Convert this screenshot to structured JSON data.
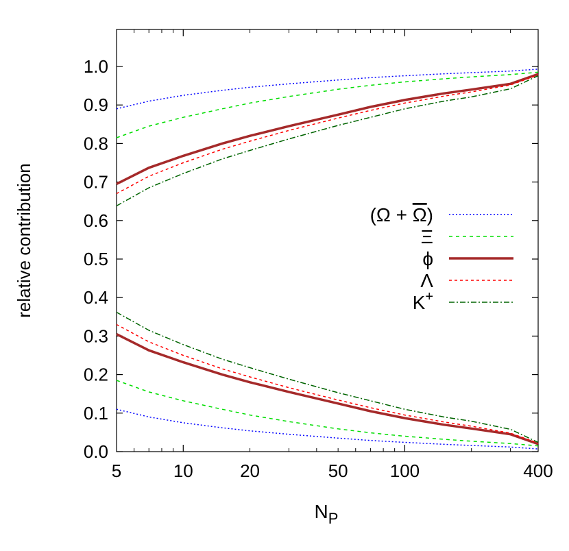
{
  "chart_data": {
    "type": "line",
    "xlabel": "N",
    "xlabel_sub": "P",
    "ylabel": "relative contribution",
    "xscale": "log",
    "xlim": [
      5,
      400
    ],
    "ylim": [
      0,
      1.0
    ],
    "x_ticks": [
      5,
      10,
      20,
      50,
      100,
      400
    ],
    "x_tick_labels": [
      "5",
      "10",
      "20",
      "50",
      "100",
      "400"
    ],
    "y_ticks": [
      0,
      0.1,
      0.2,
      0.3,
      0.4,
      0.5,
      0.6,
      0.7,
      0.8,
      0.9,
      1.0
    ],
    "y_tick_labels": [
      "0.0",
      "0.1",
      "0.2",
      "0.3",
      "0.4",
      "0.5",
      "0.6",
      "0.7",
      "0.8",
      "0.9",
      "1.0"
    ],
    "grid": false,
    "legend_position": "right",
    "x": [
      5,
      7,
      10,
      15,
      20,
      30,
      50,
      70,
      100,
      150,
      200,
      300,
      400
    ],
    "series": [
      {
        "name": "(Ω + Ω̄)",
        "label_main": "(Ω + ",
        "label_over": "Ω",
        "label_close": ")",
        "color": "#0000ff",
        "dash": "2,3",
        "width": 1.5,
        "upper": [
          0.89,
          0.91,
          0.925,
          0.938,
          0.946,
          0.955,
          0.965,
          0.971,
          0.976,
          0.981,
          0.984,
          0.988,
          0.993
        ],
        "lower": [
          0.11,
          0.09,
          0.075,
          0.062,
          0.054,
          0.045,
          0.035,
          0.029,
          0.024,
          0.019,
          0.016,
          0.012,
          0.007
        ]
      },
      {
        "name": "Ξ",
        "label_main": "Ξ",
        "label_over": "",
        "label_close": "",
        "color": "#00dd00",
        "dash": "5,5",
        "width": 1.5,
        "upper": [
          0.815,
          0.845,
          0.868,
          0.89,
          0.905,
          0.922,
          0.941,
          0.951,
          0.96,
          0.968,
          0.973,
          0.979,
          0.985
        ],
        "lower": [
          0.185,
          0.155,
          0.132,
          0.11,
          0.095,
          0.078,
          0.059,
          0.049,
          0.04,
          0.032,
          0.027,
          0.021,
          0.015
        ]
      },
      {
        "name": "ϕ",
        "label_main": "ϕ",
        "label_over": "",
        "label_close": "",
        "color": "#a52a2a",
        "dash": "",
        "width": 3.5,
        "upper": [
          0.695,
          0.737,
          0.768,
          0.8,
          0.82,
          0.845,
          0.875,
          0.895,
          0.913,
          0.93,
          0.94,
          0.955,
          0.98
        ],
        "lower": [
          0.305,
          0.263,
          0.232,
          0.2,
          0.18,
          0.155,
          0.125,
          0.105,
          0.087,
          0.07,
          0.06,
          0.045,
          0.02
        ]
      },
      {
        "name": "Λ",
        "label_main": "Λ",
        "label_over": "",
        "label_close": "",
        "color": "#ff0000",
        "dash": "4,4",
        "width": 1.5,
        "upper": [
          0.67,
          0.715,
          0.75,
          0.785,
          0.806,
          0.834,
          0.866,
          0.886,
          0.905,
          0.923,
          0.934,
          0.952,
          0.978
        ],
        "lower": [
          0.33,
          0.285,
          0.25,
          0.215,
          0.194,
          0.166,
          0.134,
          0.114,
          0.095,
          0.077,
          0.066,
          0.048,
          0.022
        ]
      },
      {
        "name": "K⁺",
        "label_main": "K",
        "label_sup": "+",
        "label_over": "",
        "label_close": "",
        "color": "#006400",
        "dash": "8,3,2,3",
        "width": 1.5,
        "upper": [
          0.638,
          0.685,
          0.722,
          0.76,
          0.782,
          0.812,
          0.847,
          0.868,
          0.89,
          0.91,
          0.921,
          0.942,
          0.976
        ],
        "lower": [
          0.362,
          0.315,
          0.278,
          0.24,
          0.218,
          0.188,
          0.153,
          0.132,
          0.11,
          0.09,
          0.079,
          0.058,
          0.024
        ]
      }
    ]
  }
}
